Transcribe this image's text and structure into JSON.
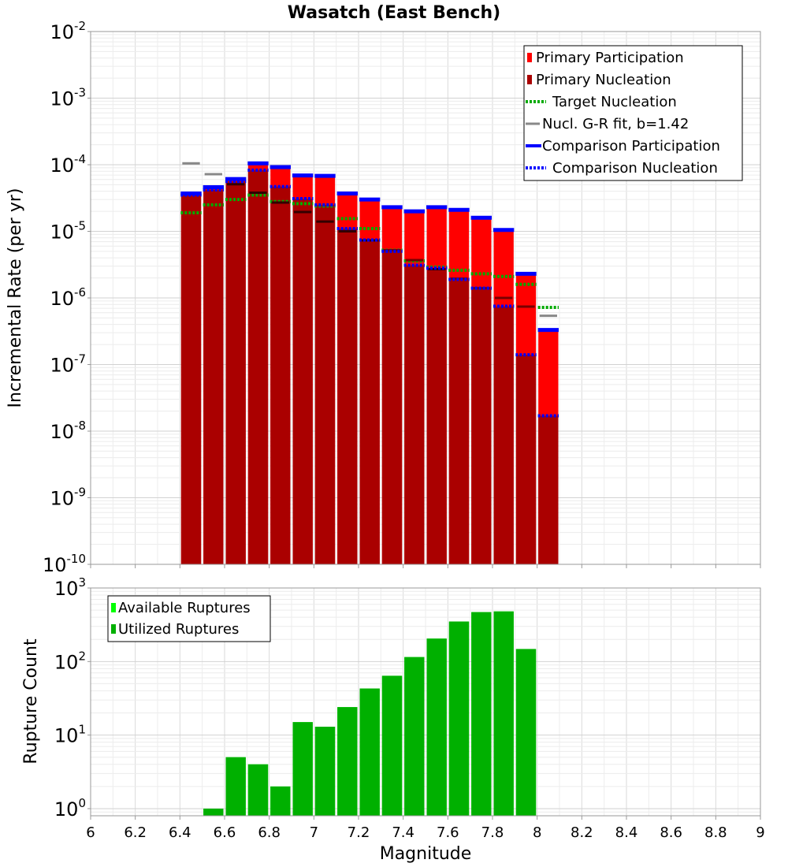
{
  "chart_data": [
    {
      "type": "bar",
      "title": "Wasatch (East Bench)",
      "ylabel": "Incremental Rate (per yr)",
      "xlabel": "",
      "yscale": "log",
      "ylim": [
        1e-10,
        0.01
      ],
      "xlim": [
        6,
        9
      ],
      "x_ticks": [
        "6",
        "6.2",
        "6.4",
        "6.6",
        "6.8",
        "7",
        "7.2",
        "7.4",
        "7.6",
        "7.8",
        "8",
        "8.2",
        "8.4",
        "8.6",
        "8.8",
        "9"
      ],
      "y_ticks": [
        {
          "base": "10",
          "exp": "-2"
        },
        {
          "base": "10",
          "exp": "-3"
        },
        {
          "base": "10",
          "exp": "-4"
        },
        {
          "base": "10",
          "exp": "-5"
        },
        {
          "base": "10",
          "exp": "-6"
        },
        {
          "base": "10",
          "exp": "-7"
        },
        {
          "base": "10",
          "exp": "-8"
        },
        {
          "base": "10",
          "exp": "-9"
        },
        {
          "base": "10",
          "exp": "-10"
        }
      ],
      "grid": true,
      "legend_position": "top-right",
      "x": [
        6.45,
        6.55,
        6.65,
        6.75,
        6.85,
        6.95,
        7.05,
        7.15,
        7.25,
        7.35,
        7.45,
        7.55,
        7.65,
        7.75,
        7.85,
        7.95,
        8.05
      ],
      "series": [
        {
          "name": "Primary Participation",
          "style": "bar",
          "color": "#ff0000",
          "values": [
            3.7e-05,
            4.6e-05,
            6.1e-05,
            0.000105,
            9.2e-05,
            6.9e-05,
            6.8e-05,
            3.7e-05,
            3e-05,
            2.3e-05,
            2e-05,
            2.3e-05,
            2.1e-05,
            1.6e-05,
            1.05e-05,
            2.3e-06,
            3.3e-07
          ]
        },
        {
          "name": "Primary Nucleation",
          "style": "bar",
          "color": "#aa0000",
          "values": [
            3.5e-05,
            4.2e-05,
            5.6e-05,
            8.3e-05,
            4.7e-05,
            3.1e-05,
            2.5e-05,
            1.1e-05,
            7.4e-06,
            5e-06,
            3.1e-06,
            2.8e-06,
            1.9e-06,
            1.4e-06,
            7.5e-07,
            1.4e-07,
            1.7e-08
          ]
        },
        {
          "name": "Target Nucleation",
          "style": "dotted",
          "color": "#00aa00",
          "values": [
            1.9e-05,
            2.5e-05,
            3e-05,
            3.5e-05,
            2.8e-05,
            2.6e-05,
            2.4e-05,
            1.55e-05,
            1.1e-05,
            5.2e-06,
            3.6e-06,
            2.9e-06,
            2.6e-06,
            2.3e-06,
            2.1e-06,
            1.6e-06,
            7.2e-07
          ]
        },
        {
          "name": "Nucl. G-R fit, b=1.42",
          "style": "dash",
          "color": "#888888",
          "values": [
            0.000105,
            7.2e-05,
            5.1e-05,
            3.8e-05,
            2.7e-05,
            1.95e-05,
            1.4e-05,
            1e-05,
            7.3e-06,
            5.2e-06,
            3.7e-06,
            2.7e-06,
            1.95e-06,
            1.4e-06,
            1e-06,
            7.4e-07,
            5.4e-07
          ]
        },
        {
          "name": "Comparison Participation",
          "style": "solid",
          "color": "#0000ff",
          "values": [
            3.7e-05,
            4.6e-05,
            6.1e-05,
            0.000105,
            9.2e-05,
            6.9e-05,
            6.8e-05,
            3.7e-05,
            3e-05,
            2.3e-05,
            2e-05,
            2.3e-05,
            2.1e-05,
            1.6e-05,
            1.05e-05,
            2.3e-06,
            3.3e-07
          ]
        },
        {
          "name": "Comparison Nucleation",
          "style": "dotted",
          "color": "#0000ff",
          "values": [
            3.5e-05,
            4.2e-05,
            5.6e-05,
            8.3e-05,
            4.7e-05,
            3.1e-05,
            2.5e-05,
            1.1e-05,
            7.4e-06,
            5e-06,
            3.1e-06,
            2.8e-06,
            1.9e-06,
            1.4e-06,
            7.5e-07,
            1.4e-07,
            1.7e-08
          ]
        }
      ]
    },
    {
      "type": "bar",
      "title": "",
      "xlabel": "Magnitude",
      "ylabel": "Rupture Count",
      "yscale": "log",
      "ylim": [
        0.8,
        1000
      ],
      "xlim": [
        6,
        9
      ],
      "x_ticks": [
        "6",
        "6.2",
        "6.4",
        "6.6",
        "6.8",
        "7",
        "7.2",
        "7.4",
        "7.6",
        "7.8",
        "8",
        "8.2",
        "8.4",
        "8.6",
        "8.8",
        "9"
      ],
      "y_ticks": [
        {
          "base": "10",
          "exp": "3"
        },
        {
          "base": "10",
          "exp": "2"
        },
        {
          "base": "10",
          "exp": "1"
        },
        {
          "base": "10",
          "exp": "0"
        }
      ],
      "grid": true,
      "legend_position": "top-left",
      "x": [
        6.55,
        6.65,
        6.75,
        6.85,
        6.95,
        7.05,
        7.15,
        7.25,
        7.35,
        7.45,
        7.55,
        7.65,
        7.75,
        7.85,
        7.95
      ],
      "series": [
        {
          "name": "Available Ruptures",
          "color": "#00ff00",
          "values": [
            1,
            5,
            4,
            2,
            15,
            13,
            24,
            43,
            64,
            115,
            205,
            350,
            470,
            480,
            148
          ]
        },
        {
          "name": "Utilized Ruptures",
          "color": "#00b000",
          "values": [
            1,
            5,
            4,
            2,
            15,
            13,
            24,
            43,
            64,
            115,
            205,
            350,
            470,
            480,
            148
          ]
        }
      ]
    }
  ]
}
